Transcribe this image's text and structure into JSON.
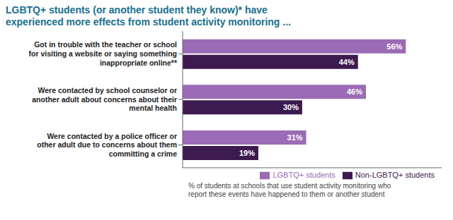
{
  "chart_data": {
    "type": "bar",
    "orientation": "horizontal",
    "title": "LGBTQ+ students (or another student they know)* have\nexperienced more effects from student activity monitoring ...",
    "categories": [
      "Got in trouble with the teacher or school\nfor visiting a website or saying something\ninappropriate online**",
      "Were contacted by school counselor or\nanother adult about concerns about their\nmental health",
      "Were contacted by a police officer or\nother adult due to concerns about them\ncommitting a crime"
    ],
    "series": [
      {
        "name": "LGBTQ+ students",
        "color": "#9b6bb5",
        "values": [
          56,
          46,
          31
        ],
        "value_labels": [
          "56%",
          "46%",
          "31%"
        ]
      },
      {
        "name": "Non-LGBTQ+ students",
        "color": "#3d1a4f",
        "values": [
          44,
          30,
          19
        ],
        "value_labels": [
          "44%",
          "30%",
          "19%"
        ]
      }
    ],
    "xlim": [
      0,
      65
    ],
    "tick_labels": "y",
    "grid": false,
    "legend": "lower right",
    "data_labels": true,
    "annotations": [
      "% of students at schools that use student activity monitoring who\nreport these events have happened to them or another student"
    ]
  }
}
